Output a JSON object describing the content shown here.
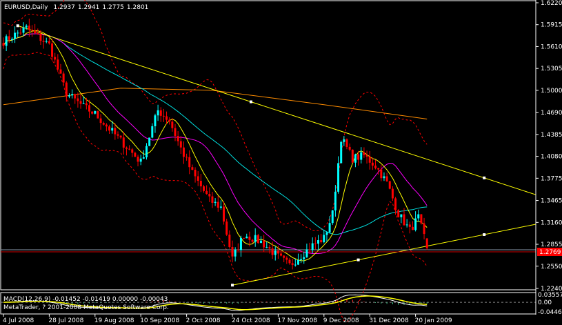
{
  "header": {
    "symbol_period": "EURUSD,Daily",
    "open": "1.2937",
    "high": "1.2941",
    "low": "1.2775",
    "close": "1.2801"
  },
  "macd_label": "MACD(12,26,9) -0.01452 -0.01419 0.00000 -0.00043",
  "copyright": "MetaTrader, ? 2001-2008 MetaQuotes Software Corp.",
  "current_price_label": "1.2769",
  "colors": {
    "background": "#000000",
    "bull_candle": "#00ffff",
    "bear_candle": "#ff0000",
    "fast_ma": "#ffff00",
    "mid_ma": "#ff00ff",
    "slow_ma": "#00e0e0",
    "long_ma": "#ff8c00",
    "bands": "#ff0000",
    "trendline": "#ffff00",
    "price_label_bg": "#ff0000"
  },
  "chart_data": [
    {
      "type": "candlestick",
      "symbol": "EURUSD",
      "period": "Daily",
      "y_ticks": [
        "1.6220",
        "1.5915",
        "1.5610",
        "1.5305",
        "1.5000",
        "1.4690",
        "1.4385",
        "1.4080",
        "1.3775",
        "1.3465",
        "1.3160",
        "1.2855",
        "1.2550",
        "1.2240"
      ],
      "ylim": [
        1.224,
        1.622
      ],
      "x_ticks": [
        "4 Jul 2008",
        "28 Jul 2008",
        "19 Aug 2008",
        "10 Sep 2008",
        "2 Oct 2008",
        "24 Oct 2008",
        "17 Nov 2008",
        "9 Dec 2008",
        "31 Dec 2008",
        "20 Jan 2009"
      ],
      "approx_closes": [
        [
          "2008-07-04",
          1.568
        ],
        [
          "2008-07-16",
          1.587
        ],
        [
          "2008-07-28",
          1.563
        ],
        [
          "2008-08-05",
          1.496
        ],
        [
          "2008-08-13",
          1.477
        ],
        [
          "2008-08-19",
          1.467
        ],
        [
          "2008-08-29",
          1.434
        ],
        [
          "2008-09-10",
          1.4
        ],
        [
          "2008-09-18",
          1.472
        ],
        [
          "2008-09-24",
          1.458
        ],
        [
          "2008-09-30",
          1.419
        ],
        [
          "2008-10-06",
          1.385
        ],
        [
          "2008-10-14",
          1.347
        ],
        [
          "2008-10-20",
          1.337
        ],
        [
          "2008-10-24",
          1.265
        ],
        [
          "2008-10-30",
          1.299
        ],
        [
          "2008-11-07",
          1.289
        ],
        [
          "2008-11-17",
          1.268
        ],
        [
          "2008-11-21",
          1.256
        ],
        [
          "2008-11-27",
          1.27
        ],
        [
          "2008-12-03",
          1.284
        ],
        [
          "2008-12-09",
          1.294
        ],
        [
          "2008-12-12",
          1.328
        ],
        [
          "2008-12-17",
          1.434
        ],
        [
          "2008-12-23",
          1.405
        ],
        [
          "2008-12-29",
          1.409
        ],
        [
          "2009-01-02",
          1.395
        ],
        [
          "2009-01-08",
          1.371
        ],
        [
          "2009-01-14",
          1.328
        ],
        [
          "2009-01-20",
          1.305
        ],
        [
          "2009-01-23",
          1.323
        ],
        [
          "2009-01-28",
          1.2801
        ]
      ],
      "last_bar": {
        "open": 1.2937,
        "high": 1.2941,
        "low": 1.2775,
        "close": 1.2801
      },
      "long_ma": [
        [
          "2008-07-04",
          1.48
        ],
        [
          "2008-09-01",
          1.503
        ],
        [
          "2008-10-15",
          1.5
        ],
        [
          "2008-12-09",
          1.48
        ],
        [
          "2009-01-28",
          1.46
        ]
      ],
      "trendlines": [
        {
          "from": [
            "2008-07-11",
            1.59
          ],
          "to": [
            "2009-02-25",
            1.378
          ]
        },
        {
          "from": [
            "2008-10-24",
            1.2286
          ],
          "to": [
            "2009-02-25",
            1.299
          ]
        }
      ]
    },
    {
      "type": "macd",
      "params": "12,26,9",
      "values": {
        "main": -0.01452,
        "signal": -0.01419,
        "c": 0.0,
        "d": -0.00043
      },
      "y_ticks": [
        "0.03557",
        "0.00",
        "-0.04461"
      ],
      "ylim": [
        -0.04461,
        0.03557
      ]
    }
  ]
}
